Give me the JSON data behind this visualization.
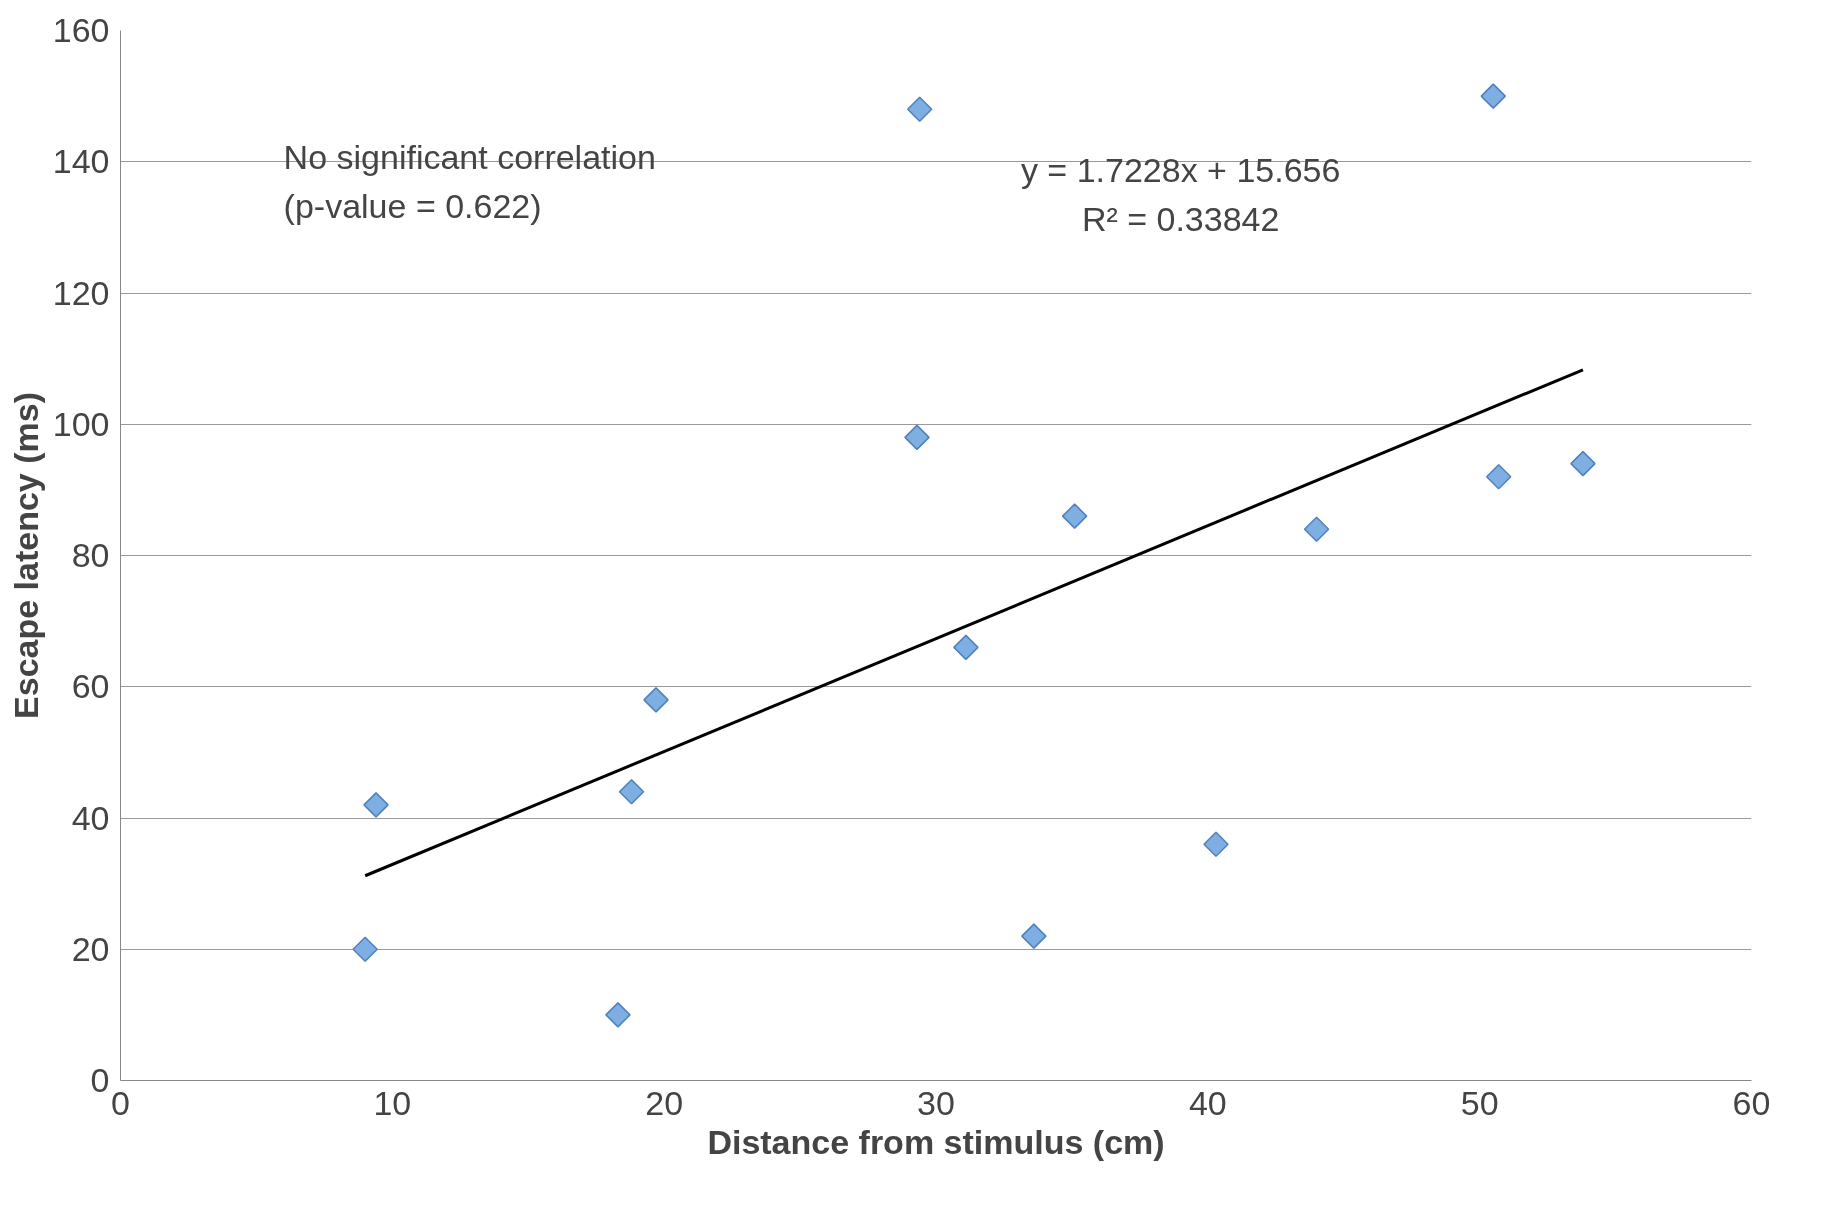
{
  "chart_data": {
    "type": "scatter",
    "xlabel": "Distance from stimulus (cm)",
    "ylabel": "Escape latency (ms)",
    "annotations": [
      "No significant correlation\n (p-value = 0.622)",
      "y = 1.7228x + 15.656\nR² = 0.33842"
    ],
    "series": [
      {
        "color": "#7eaee2",
        "marker": "diamond",
        "x": [
          9.0,
          9.4,
          18.3,
          18.8,
          19.7,
          29.3,
          29.4,
          31.1,
          33.6,
          35.1,
          40.3,
          44.0,
          50.5,
          50.7,
          53.8
        ],
        "values": [
          20,
          42,
          10,
          44,
          58,
          98,
          148,
          66,
          22,
          86,
          36,
          84,
          150,
          92,
          94
        ]
      },
      {
        "type": "line",
        "color": "#000000",
        "marker": "none",
        "x": [
          9.0,
          53.8
        ],
        "values": [
          31.2,
          108.3
        ]
      }
    ],
    "xlim": [
      0,
      60
    ],
    "xticks": [
      0,
      10,
      20,
      30,
      40,
      50,
      60
    ],
    "ylim": [
      0,
      160
    ],
    "yticks": [
      0,
      20,
      40,
      60,
      80,
      100,
      120,
      140,
      160
    ],
    "grid": "y"
  }
}
